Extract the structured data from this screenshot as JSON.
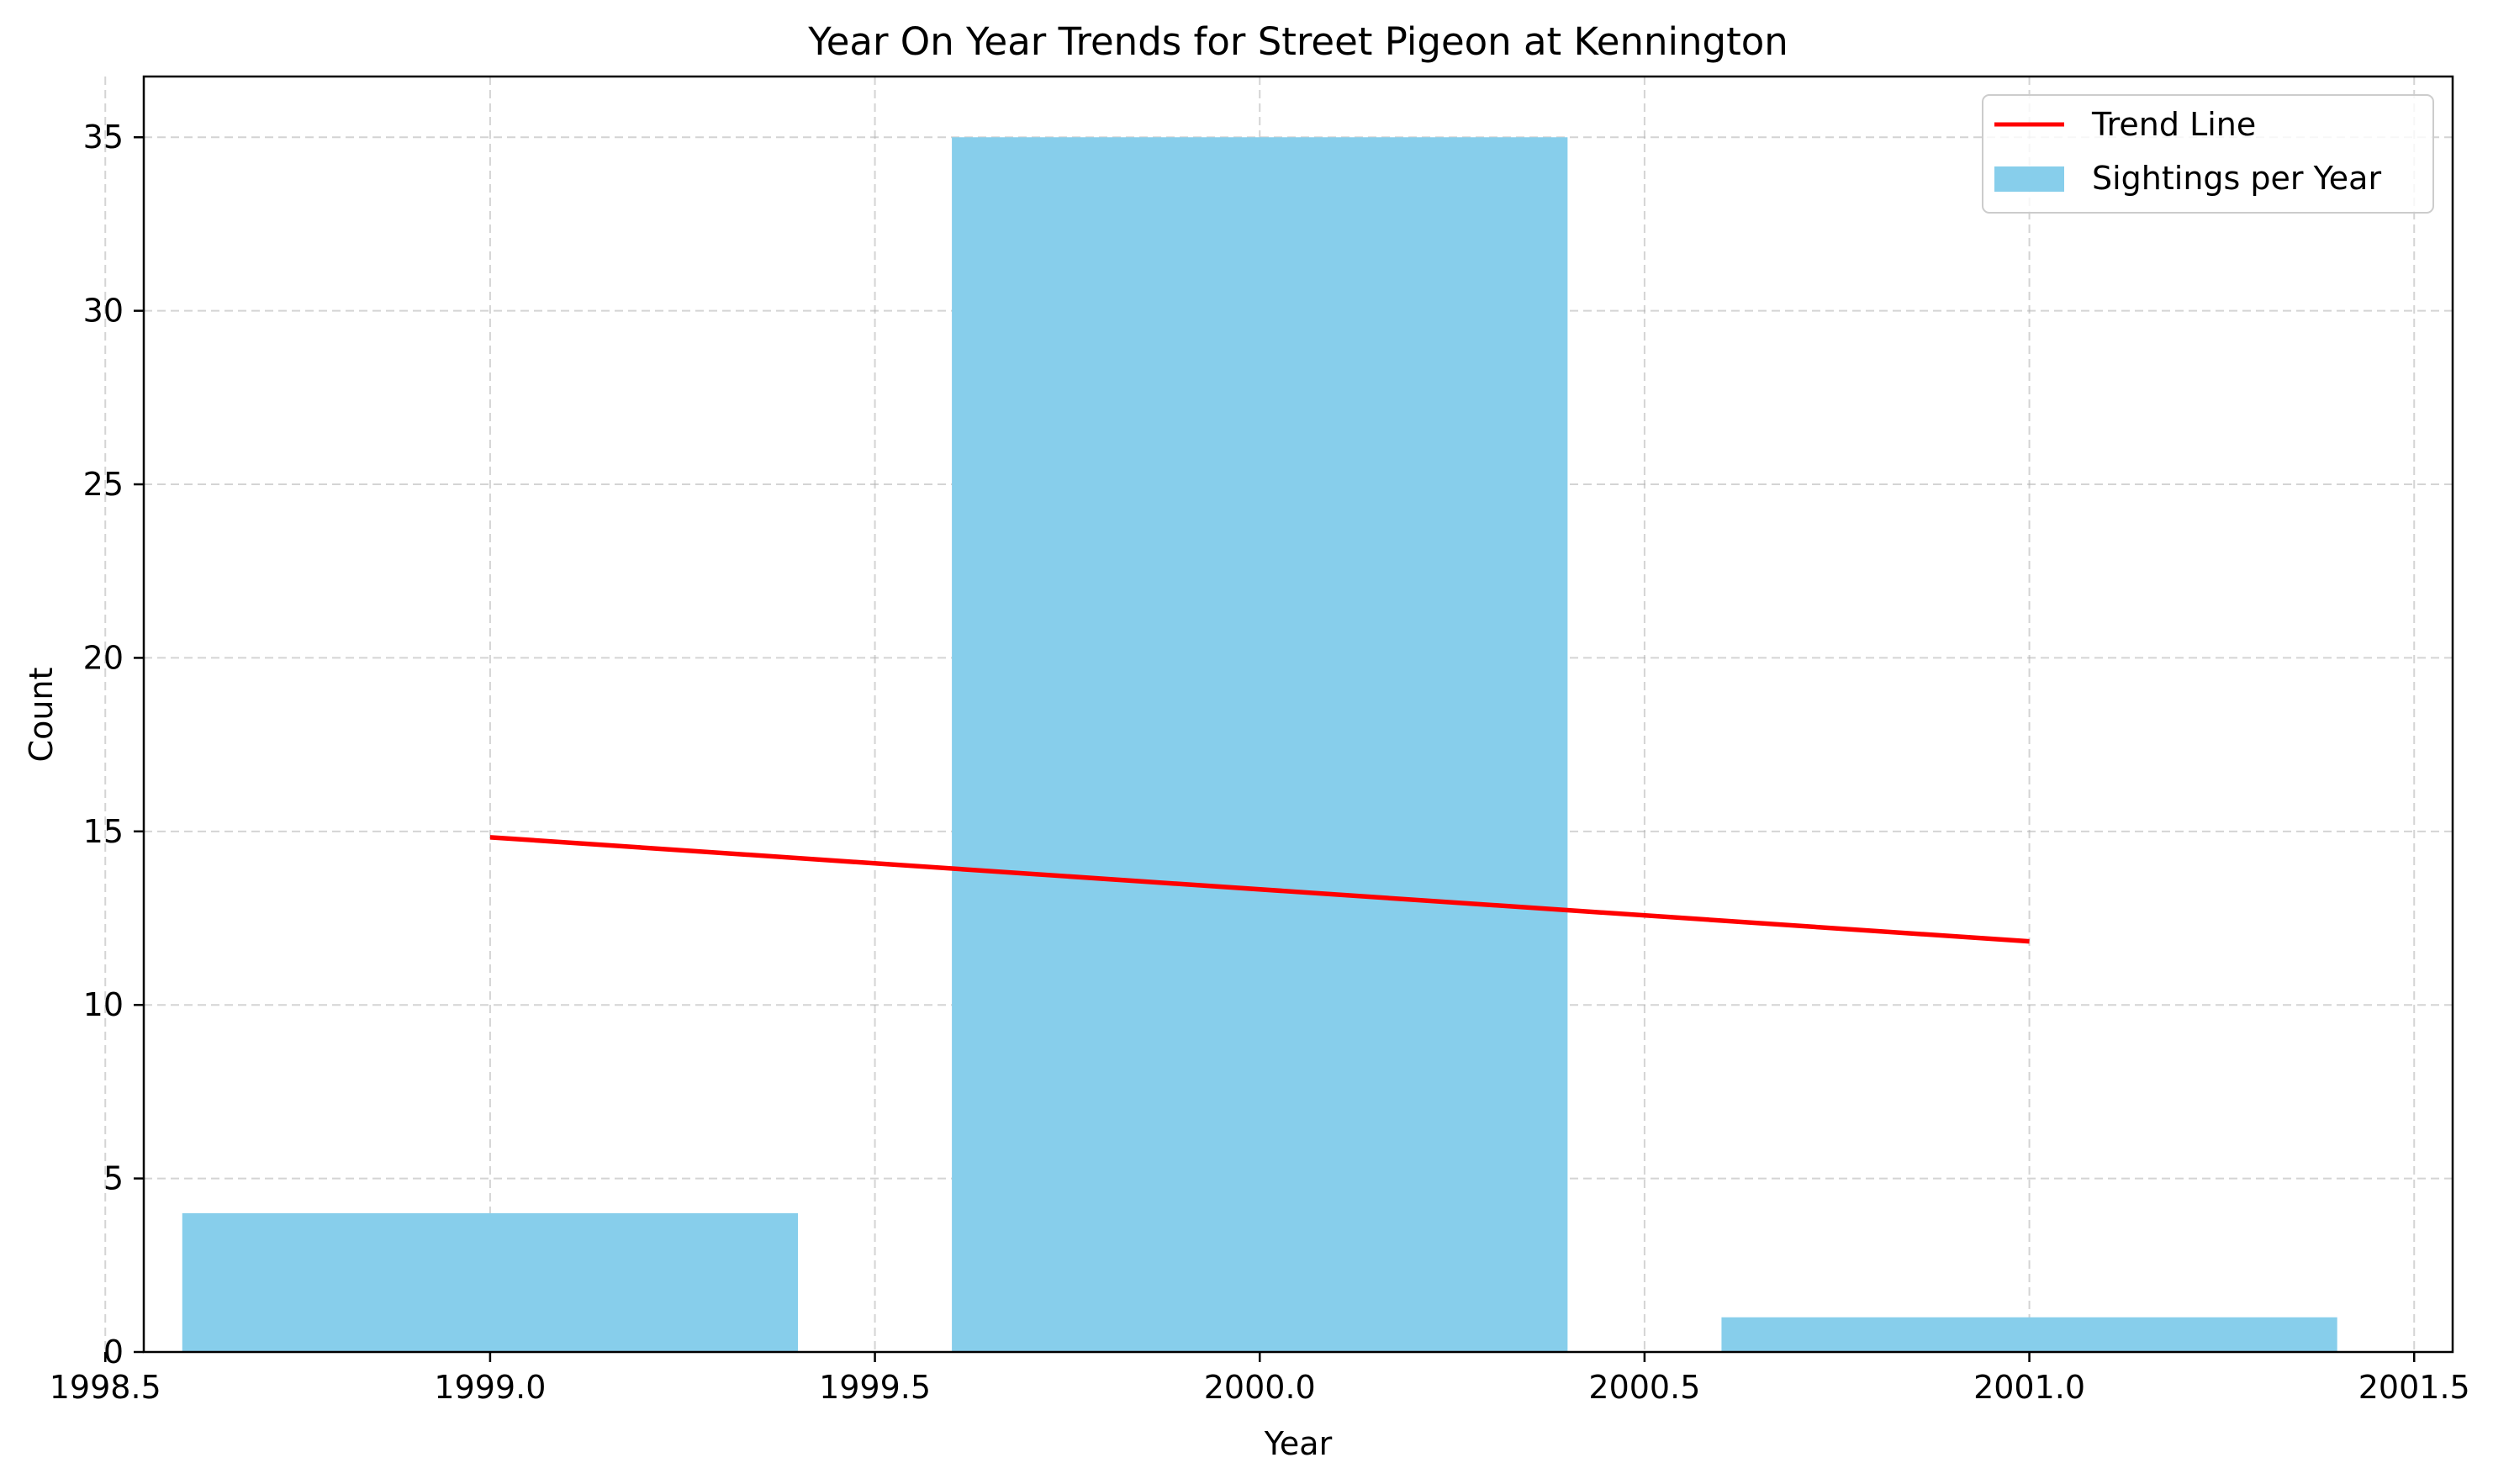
{
  "chart_data": {
    "type": "bar",
    "title": "Year On Year Trends for Street Pigeon at Kennington",
    "xlabel": "Year",
    "ylabel": "Count",
    "xlim": [
      1998.55,
      2001.55
    ],
    "ylim": [
      0,
      36.75
    ],
    "x_ticks": [
      1998.5,
      1999.0,
      1999.5,
      2000.0,
      2000.5,
      2001.0,
      2001.5
    ],
    "x_tick_labels": [
      "1998.5",
      "1999.0",
      "1999.5",
      "2000.0",
      "2000.5",
      "2001.0",
      "2001.5"
    ],
    "y_ticks": [
      0,
      5,
      10,
      15,
      20,
      25,
      30,
      35
    ],
    "y_tick_labels": [
      "0",
      "5",
      "10",
      "15",
      "20",
      "25",
      "30",
      "35"
    ],
    "grid": true,
    "legend_position": "top-right",
    "bar_width": 0.8,
    "series": [
      {
        "name": "Sightings per Year",
        "type": "bar",
        "color": "#87ceeb",
        "x": [
          1999,
          2000,
          2001
        ],
        "values": [
          4,
          35,
          1
        ]
      },
      {
        "name": "Trend Line",
        "type": "line",
        "color": "#ff0000",
        "x": [
          1999,
          2001
        ],
        "values": [
          14.83,
          11.83
        ]
      }
    ]
  }
}
